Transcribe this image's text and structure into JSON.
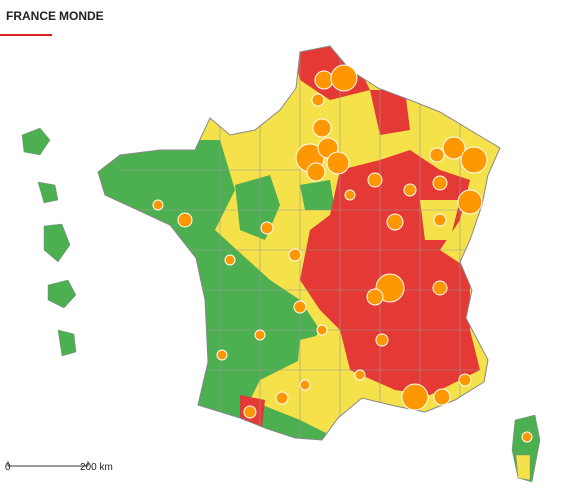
{
  "tabs": [
    {
      "label": "FRANCE"
    },
    {
      "label": "MONDE"
    }
  ],
  "scale": {
    "start": "0",
    "end": "200 km"
  }
}
